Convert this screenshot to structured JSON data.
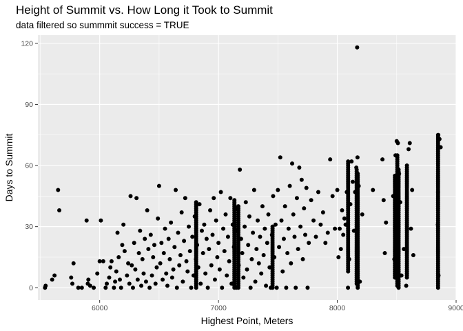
{
  "chart_data": {
    "type": "scatter",
    "title": "Height of Summit vs. How Long it Took to Summit",
    "subtitle": "data filtered so summmit success = TRUE",
    "xlabel": "Highest Point, Meters",
    "ylabel": "Days to Summit",
    "xlim": [
      5480,
      9000
    ],
    "ylim": [
      -6,
      124
    ],
    "xticks": [
      6000,
      7000,
      8000,
      9000
    ],
    "xtick_labels": [
      "6000",
      "7000",
      "8000",
      "9000"
    ],
    "yticks": [
      0,
      30,
      60,
      90,
      120
    ],
    "ytick_labels": [
      "0",
      "30",
      "60",
      "90",
      "120"
    ],
    "grid": true,
    "point_color": "#000000",
    "panel_color": "#ebebeb",
    "points": [
      [
        5540,
        0
      ],
      [
        5545,
        1
      ],
      [
        5600,
        4
      ],
      [
        5620,
        6
      ],
      [
        5650,
        48
      ],
      [
        5660,
        38
      ],
      [
        5760,
        5
      ],
      [
        5780,
        12
      ],
      [
        5770,
        2
      ],
      [
        5820,
        0
      ],
      [
        5850,
        0
      ],
      [
        5890,
        33
      ],
      [
        5900,
        2
      ],
      [
        5905,
        4
      ],
      [
        5920,
        1
      ],
      [
        5950,
        0
      ],
      [
        5980,
        7
      ],
      [
        6000,
        13
      ],
      [
        6010,
        33
      ],
      [
        6030,
        13
      ],
      [
        6050,
        0
      ],
      [
        6060,
        2
      ],
      [
        6080,
        5
      ],
      [
        6090,
        10
      ],
      [
        6100,
        13
      ],
      [
        6120,
        0
      ],
      [
        6130,
        3
      ],
      [
        6140,
        8
      ],
      [
        6150,
        27
      ],
      [
        6160,
        15
      ],
      [
        6170,
        4
      ],
      [
        6180,
        0
      ],
      [
        6190,
        21
      ],
      [
        6200,
        31
      ],
      [
        6210,
        18
      ],
      [
        6230,
        6
      ],
      [
        6240,
        12
      ],
      [
        6250,
        2
      ],
      [
        6260,
        45
      ],
      [
        6270,
        11
      ],
      [
        6280,
        0
      ],
      [
        6290,
        22
      ],
      [
        6300,
        9
      ],
      [
        6310,
        44
      ],
      [
        6320,
        4
      ],
      [
        6330,
        17
      ],
      [
        6340,
        28
      ],
      [
        6350,
        1
      ],
      [
        6360,
        14
      ],
      [
        6370,
        7
      ],
      [
        6380,
        24
      ],
      [
        6390,
        3
      ],
      [
        6400,
        38
      ],
      [
        6410,
        19
      ],
      [
        6420,
        0
      ],
      [
        6430,
        26
      ],
      [
        6440,
        6
      ],
      [
        6450,
        15
      ],
      [
        6460,
        21
      ],
      [
        6470,
        2
      ],
      [
        6480,
        10
      ],
      [
        6490,
        34
      ],
      [
        6500,
        50
      ],
      [
        6510,
        12
      ],
      [
        6520,
        22
      ],
      [
        6530,
        4
      ],
      [
        6540,
        17
      ],
      [
        6550,
        29
      ],
      [
        6560,
        7
      ],
      [
        6570,
        1
      ],
      [
        6580,
        24
      ],
      [
        6590,
        14
      ],
      [
        6600,
        32
      ],
      [
        6610,
        5
      ],
      [
        6620,
        9
      ],
      [
        6630,
        20
      ],
      [
        6640,
        48
      ],
      [
        6650,
        0
      ],
      [
        6660,
        27
      ],
      [
        6670,
        11
      ],
      [
        6680,
        16
      ],
      [
        6690,
        37
      ],
      [
        6700,
        3
      ],
      [
        6710,
        23
      ],
      [
        6720,
        44
      ],
      [
        6730,
        13
      ],
      [
        6740,
        8
      ],
      [
        6750,
        30
      ],
      [
        6760,
        18
      ],
      [
        6770,
        0
      ],
      [
        6780,
        25
      ],
      [
        6790,
        6
      ],
      [
        6800,
        35
      ],
      [
        6810,
        14
      ],
      [
        6820,
        21
      ],
      [
        6830,
        10
      ],
      [
        6840,
        41
      ],
      [
        6850,
        2
      ],
      [
        6860,
        28
      ],
      [
        6870,
        17
      ],
      [
        6880,
        31
      ],
      [
        6890,
        7
      ],
      [
        6900,
        24
      ],
      [
        6910,
        0
      ],
      [
        6920,
        19
      ],
      [
        6930,
        38
      ],
      [
        6940,
        11
      ],
      [
        6950,
        26
      ],
      [
        6960,
        44
      ],
      [
        6970,
        4
      ],
      [
        6980,
        33
      ],
      [
        6990,
        15
      ],
      [
        7000,
        22
      ],
      [
        7010,
        9
      ],
      [
        7020,
        47
      ],
      [
        7030,
        0
      ],
      [
        7040,
        29
      ],
      [
        7050,
        18
      ],
      [
        7060,
        36
      ],
      [
        7070,
        6
      ],
      [
        7080,
        25
      ],
      [
        7090,
        13
      ],
      [
        7100,
        44
      ],
      [
        7110,
        2
      ],
      [
        7120,
        31
      ],
      [
        7130,
        20
      ],
      [
        7140,
        28
      ],
      [
        7150,
        0
      ],
      [
        7160,
        39
      ],
      [
        7170,
        11
      ],
      [
        7180,
        58
      ],
      [
        7190,
        24
      ],
      [
        7200,
        17
      ],
      [
        7210,
        5
      ],
      [
        7220,
        30
      ],
      [
        7230,
        42
      ],
      [
        7240,
        9
      ],
      [
        7250,
        21
      ],
      [
        7260,
        35
      ],
      [
        7270,
        0
      ],
      [
        7280,
        14
      ],
      [
        7290,
        27
      ],
      [
        7300,
        48
      ],
      [
        7310,
        3
      ],
      [
        7320,
        19
      ],
      [
        7330,
        33
      ],
      [
        7340,
        12
      ],
      [
        7350,
        25
      ],
      [
        7360,
        7
      ],
      [
        7370,
        40
      ],
      [
        7380,
        16
      ],
      [
        7390,
        29
      ],
      [
        7400,
        1
      ],
      [
        7410,
        22
      ],
      [
        7420,
        36
      ],
      [
        7430,
        10
      ],
      [
        7440,
        0
      ],
      [
        7450,
        26
      ],
      [
        7460,
        45
      ],
      [
        7470,
        15
      ],
      [
        7480,
        31
      ],
      [
        7490,
        0
      ],
      [
        7500,
        48
      ],
      [
        7510,
        20
      ],
      [
        7520,
        64
      ],
      [
        7530,
        33
      ],
      [
        7540,
        8
      ],
      [
        7550,
        24
      ],
      [
        7560,
        40
      ],
      [
        7570,
        0
      ],
      [
        7580,
        17
      ],
      [
        7590,
        29
      ],
      [
        7600,
        50
      ],
      [
        7610,
        12
      ],
      [
        7620,
        61
      ],
      [
        7630,
        36
      ],
      [
        7640,
        25
      ],
      [
        7650,
        0
      ],
      [
        7660,
        44
      ],
      [
        7670,
        19
      ],
      [
        7680,
        59
      ],
      [
        7690,
        30
      ],
      [
        7700,
        53
      ],
      [
        7710,
        14
      ],
      [
        7720,
        39
      ],
      [
        7730,
        26
      ],
      [
        7740,
        49
      ],
      [
        7750,
        0
      ],
      [
        7760,
        22
      ],
      [
        7780,
        43
      ],
      [
        7800,
        33
      ],
      [
        7820,
        25
      ],
      [
        7840,
        47
      ],
      [
        7860,
        31
      ],
      [
        7880,
        37
      ],
      [
        7900,
        22
      ],
      [
        7920,
        27
      ],
      [
        7940,
        63
      ],
      [
        7960,
        45
      ],
      [
        7980,
        29
      ],
      [
        8000,
        48
      ],
      [
        8010,
        15
      ],
      [
        8020,
        29
      ],
      [
        8030,
        19
      ],
      [
        8040,
        38
      ],
      [
        8050,
        26
      ],
      [
        8060,
        34
      ],
      [
        8070,
        31
      ],
      [
        8080,
        47
      ],
      [
        8090,
        0
      ],
      [
        8100,
        14
      ],
      [
        8110,
        41
      ],
      [
        8120,
        62
      ],
      [
        8130,
        52
      ],
      [
        8140,
        28
      ],
      [
        8150,
        47
      ],
      [
        8160,
        59
      ],
      [
        8167,
        118
      ],
      [
        8170,
        64
      ],
      [
        8180,
        50
      ],
      [
        8190,
        3
      ],
      [
        8210,
        36
      ],
      [
        8300,
        48
      ],
      [
        8380,
        63
      ],
      [
        8390,
        43
      ],
      [
        8400,
        17
      ],
      [
        8410,
        32
      ],
      [
        8470,
        45
      ],
      [
        8480,
        14
      ],
      [
        8490,
        65
      ],
      [
        8500,
        72
      ],
      [
        8510,
        71
      ],
      [
        8520,
        56
      ],
      [
        8530,
        42
      ],
      [
        8540,
        6
      ],
      [
        8560,
        19
      ],
      [
        8580,
        1
      ],
      [
        8600,
        68
      ],
      [
        8610,
        71
      ],
      [
        8620,
        29
      ],
      [
        8630,
        48
      ],
      [
        8640,
        16
      ],
      [
        8850,
        75
      ],
      [
        8860,
        73
      ],
      [
        8870,
        69
      ],
      [
        8848,
        47
      ],
      [
        8852,
        6
      ],
      [
        8846,
        31
      ]
    ],
    "columns": [
      {
        "x": 8091,
        "y_min": 8,
        "y_max": 62
      },
      {
        "x": 8163,
        "y_min": 2,
        "y_max": 58
      },
      {
        "x": 8172,
        "y_min": 0,
        "y_max": 56
      },
      {
        "x": 8485,
        "y_min": 5,
        "y_max": 55
      },
      {
        "x": 8505,
        "y_min": 1,
        "y_max": 65
      },
      {
        "x": 8516,
        "y_min": 0,
        "y_max": 58
      },
      {
        "x": 8586,
        "y_min": 5,
        "y_max": 60
      },
      {
        "x": 8848,
        "y_min": 0,
        "y_max": 75
      },
      {
        "x": 6812,
        "y_min": 0,
        "y_max": 42
      },
      {
        "x": 7134,
        "y_min": 0,
        "y_max": 43
      },
      {
        "x": 7167,
        "y_min": 0,
        "y_max": 40
      },
      {
        "x": 7455,
        "y_min": 0,
        "y_max": 30
      }
    ]
  }
}
